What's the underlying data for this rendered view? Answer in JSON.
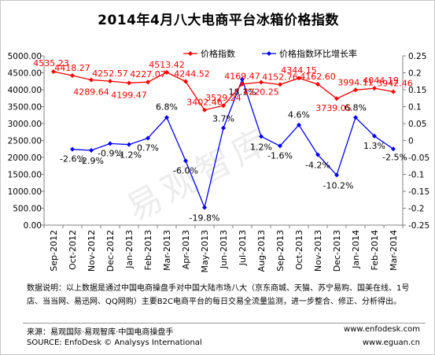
{
  "chart_data": {
    "type": "line",
    "title": "2014年4月八大电商平台冰箱价格指数",
    "categories": [
      "Sep-2012",
      "Oct-2012",
      "Nov-2012",
      "Dec-2012",
      "Jan-2013",
      "Feb-2013",
      "Mar-2013",
      "Apr-2013",
      "May-2013",
      "Jun-2013",
      "Jul-2013",
      "Aug-2013",
      "Sep-2013",
      "Oct-2013",
      "Nov-2013",
      "Dec-2013",
      "Jan-2014",
      "Feb-2014",
      "Mar-2014"
    ],
    "series": [
      {
        "name": "价格指数",
        "axis": "left",
        "color": "#ff0000",
        "marker": "diamond",
        "values": [
          4535.23,
          4418.27,
          4289.64,
          4252.57,
          4199.47,
          4227.07,
          4513.42,
          4244.52,
          3402.46,
          3529.24,
          4169.47,
          4220.25,
          4152.76,
          4344.15,
          4162.6,
          3739.05,
          3994.11,
          4044.19,
          3942.46
        ],
        "labels": [
          "4535.23",
          "4418.27",
          "4289.64",
          "4252.57",
          "4199.47",
          "4227.07",
          "4513.42",
          "4244.52",
          "3402.46",
          "3529.24",
          "4169.47",
          "4220.25",
          "4152.76",
          "4344.15",
          "4162.60",
          "3739.05",
          "3994.11",
          "4044.19",
          "3942.46"
        ]
      },
      {
        "name": "价格指数环比增长率",
        "axis": "right",
        "color": "#0000ff",
        "marker": "diamond",
        "values": [
          null,
          -0.026,
          -0.029,
          -0.009,
          -0.012,
          0.007,
          0.068,
          -0.06,
          -0.198,
          0.037,
          0.181,
          0.012,
          -0.016,
          0.046,
          -0.042,
          -0.102,
          0.068,
          0.013,
          -0.025
        ],
        "labels": [
          "",
          "-2.6%",
          "-2.9%",
          "-0.9%",
          "-1.2%",
          "0.7%",
          "6.8%",
          "-6.0%",
          "-19.8%",
          "3.7%",
          "18.1%",
          "1.2%",
          "-1.6%",
          "4.6%",
          "-4.2%",
          "-10.2%",
          "6.8%",
          "1.3%",
          "-2.5%"
        ]
      }
    ],
    "yleft": {
      "range": [
        0,
        5000
      ],
      "ticks": [
        "0.00",
        "500.00",
        "1000.00",
        "1500.00",
        "2000.00",
        "2500.00",
        "3000.00",
        "3500.00",
        "4000.00",
        "4500.00",
        "5000.00"
      ]
    },
    "yright": {
      "range": [
        -0.25,
        0.25
      ],
      "ticks": [
        "-0.25",
        "-0.2",
        "-0.15",
        "-0.1",
        "-0.05",
        "0",
        "0.05",
        "0.1",
        "0.15",
        "0.2",
        "0.25"
      ]
    },
    "grid": false,
    "legend": "top-right"
  },
  "note": "数据说明：以上数据是通过中国电商操盘手对中国大陆市场八大（京东商城、天猫、苏宁易购、国美在线、1号店、当当网、易迅网、QQ网购）主要B2C电商平台的每日交易全流量监测，进一步整合、修正、分析得出。",
  "footer": {
    "source_cn": "来源：易观国际·易观智库·中国电商操盘手",
    "source_en": "SOURCE: EnfoDesk © Analysys International",
    "url1": "www.enfodesk.com",
    "url2": "www.eguan.cn"
  },
  "watermark": "易观智库"
}
